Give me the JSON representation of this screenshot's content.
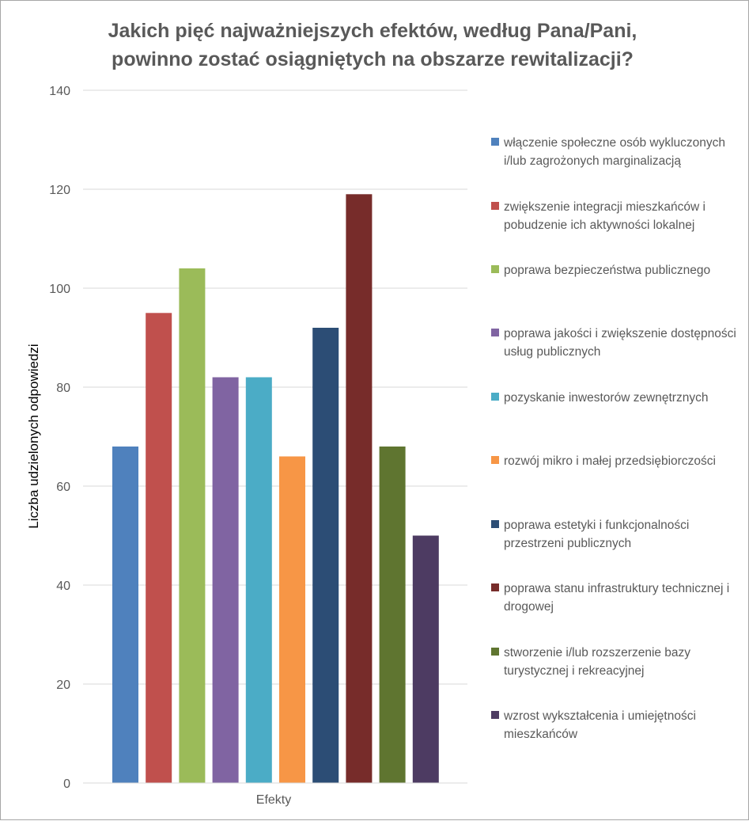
{
  "chart_data": {
    "type": "bar",
    "title_lines": [
      "Jakich pięć najważniejszych efektów, według Pana/Pani,",
      "powinno zostać osiągniętych na obszarze rewitalizacji?"
    ],
    "xlabel": "Efekty",
    "ylabel": "Liczba udzielonych odpowiedzi",
    "ylim": [
      0,
      140
    ],
    "yticks": [
      "0",
      "20",
      "40",
      "60",
      "80",
      "100",
      "120",
      "140"
    ],
    "grid": true,
    "legend_position": "right",
    "series": [
      {
        "name": "włączenie społeczne osób wykluczonych i/lub zagrożonych marginalizacją",
        "value": 68,
        "color": "#4f81bd"
      },
      {
        "name": "zwiększenie integracji mieszkańców i pobudzenie ich aktywności lokalnej",
        "value": 95,
        "color": "#c0504d"
      },
      {
        "name": "poprawa bezpieczeństwa publicznego",
        "value": 104,
        "color": "#9bbb59"
      },
      {
        "name": "poprawa jakości i zwiększenie dostępności usług publicznych",
        "value": 82,
        "color": "#8064a2"
      },
      {
        "name": "pozyskanie inwestorów zewnętrznych",
        "value": 82,
        "color": "#4bacc6"
      },
      {
        "name": "rozwój mikro i małej przedsiębiorczości",
        "value": 66,
        "color": "#f79646"
      },
      {
        "name": "poprawa estetyki i funkcjonalności przestrzeni publicznych",
        "value": 92,
        "color": "#2c4d75"
      },
      {
        "name": "poprawa stanu infrastruktury technicznej i drogowej",
        "value": 119,
        "color": "#772c2a"
      },
      {
        "name": "stworzenie i/lub rozszerzenie bazy turystycznej i rekreacyjnej",
        "value": 68,
        "color": "#5f7530"
      },
      {
        "name": "wzrost wykształcenia i umiejętności mieszkańców",
        "value": 50,
        "color": "#4d3b62"
      }
    ]
  }
}
